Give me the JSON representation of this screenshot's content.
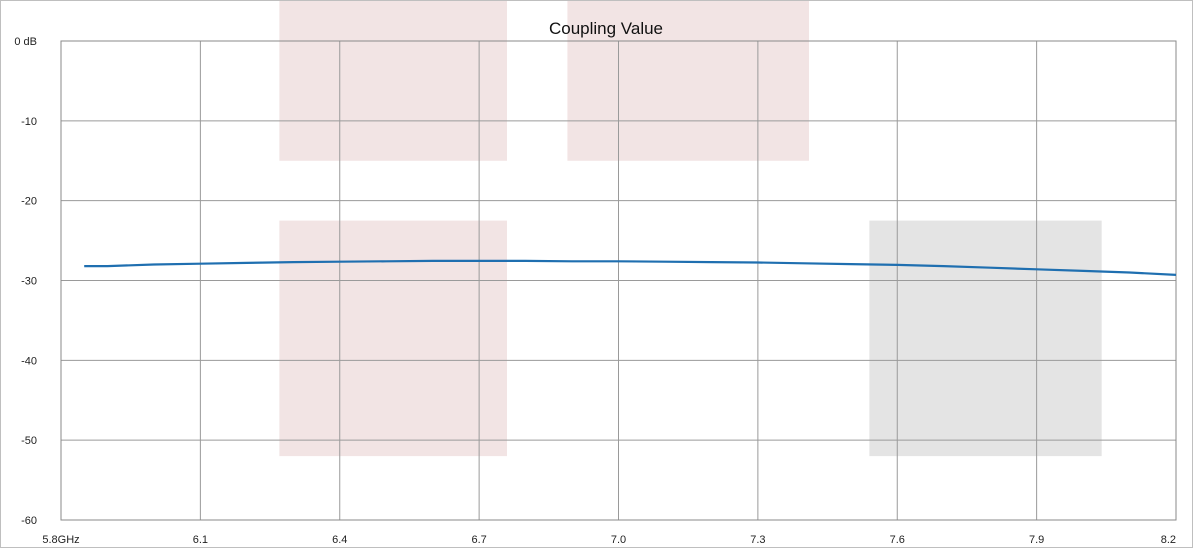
{
  "chart_data": {
    "type": "line",
    "title": "Coupling Value",
    "xlabel": "",
    "ylabel": "",
    "xlim": [
      5.8,
      8.2
    ],
    "ylim": [
      -60,
      0
    ],
    "x_ticks": [
      {
        "value": 5.8,
        "label": "5.8GHz"
      },
      {
        "value": 6.1,
        "label": "6.1"
      },
      {
        "value": 6.4,
        "label": "6.4"
      },
      {
        "value": 6.7,
        "label": "6.7"
      },
      {
        "value": 7.0,
        "label": "7.0"
      },
      {
        "value": 7.3,
        "label": "7.3"
      },
      {
        "value": 7.6,
        "label": "7.6"
      },
      {
        "value": 7.9,
        "label": "7.9"
      },
      {
        "value": 8.2,
        "label": "8.2"
      }
    ],
    "y_ticks": [
      {
        "value": 0,
        "label": "0 dB"
      },
      {
        "value": -10,
        "label": "-10"
      },
      {
        "value": -20,
        "label": "-20"
      },
      {
        "value": -30,
        "label": "-30"
      },
      {
        "value": -40,
        "label": "-40"
      },
      {
        "value": -50,
        "label": "-50"
      },
      {
        "value": -60,
        "label": "-60"
      }
    ],
    "grid": true,
    "shaded_regions": [
      {
        "x": [
          6.27,
          6.76
        ],
        "y": [
          -15,
          0
        ],
        "color": "#f2e4e4"
      },
      {
        "x": [
          6.89,
          7.41
        ],
        "y": [
          -15,
          0
        ],
        "color": "#f2e4e4"
      },
      {
        "x": [
          6.27,
          6.76
        ],
        "y": [
          -52,
          -22.5
        ],
        "color": "#f2e4e4"
      },
      {
        "x": [
          7.54,
          8.04
        ],
        "y": [
          -52,
          -22.5
        ],
        "color": "#e4e4e4"
      }
    ],
    "series": [
      {
        "color": "#1f6fb0",
        "x": [
          5.85,
          5.9,
          6.0,
          6.1,
          6.2,
          6.3,
          6.4,
          6.5,
          6.6,
          6.7,
          6.8,
          6.9,
          7.0,
          7.1,
          7.2,
          7.3,
          7.4,
          7.5,
          7.6,
          7.7,
          7.8,
          7.9,
          8.0,
          8.1,
          8.2
        ],
        "y": [
          -28.2,
          -28.2,
          -28.0,
          -27.9,
          -27.8,
          -27.7,
          -27.65,
          -27.6,
          -27.55,
          -27.55,
          -27.55,
          -27.6,
          -27.6,
          -27.65,
          -27.7,
          -27.75,
          -27.85,
          -27.95,
          -28.05,
          -28.2,
          -28.4,
          -28.6,
          -28.8,
          -29.0,
          -29.3
        ]
      }
    ]
  }
}
